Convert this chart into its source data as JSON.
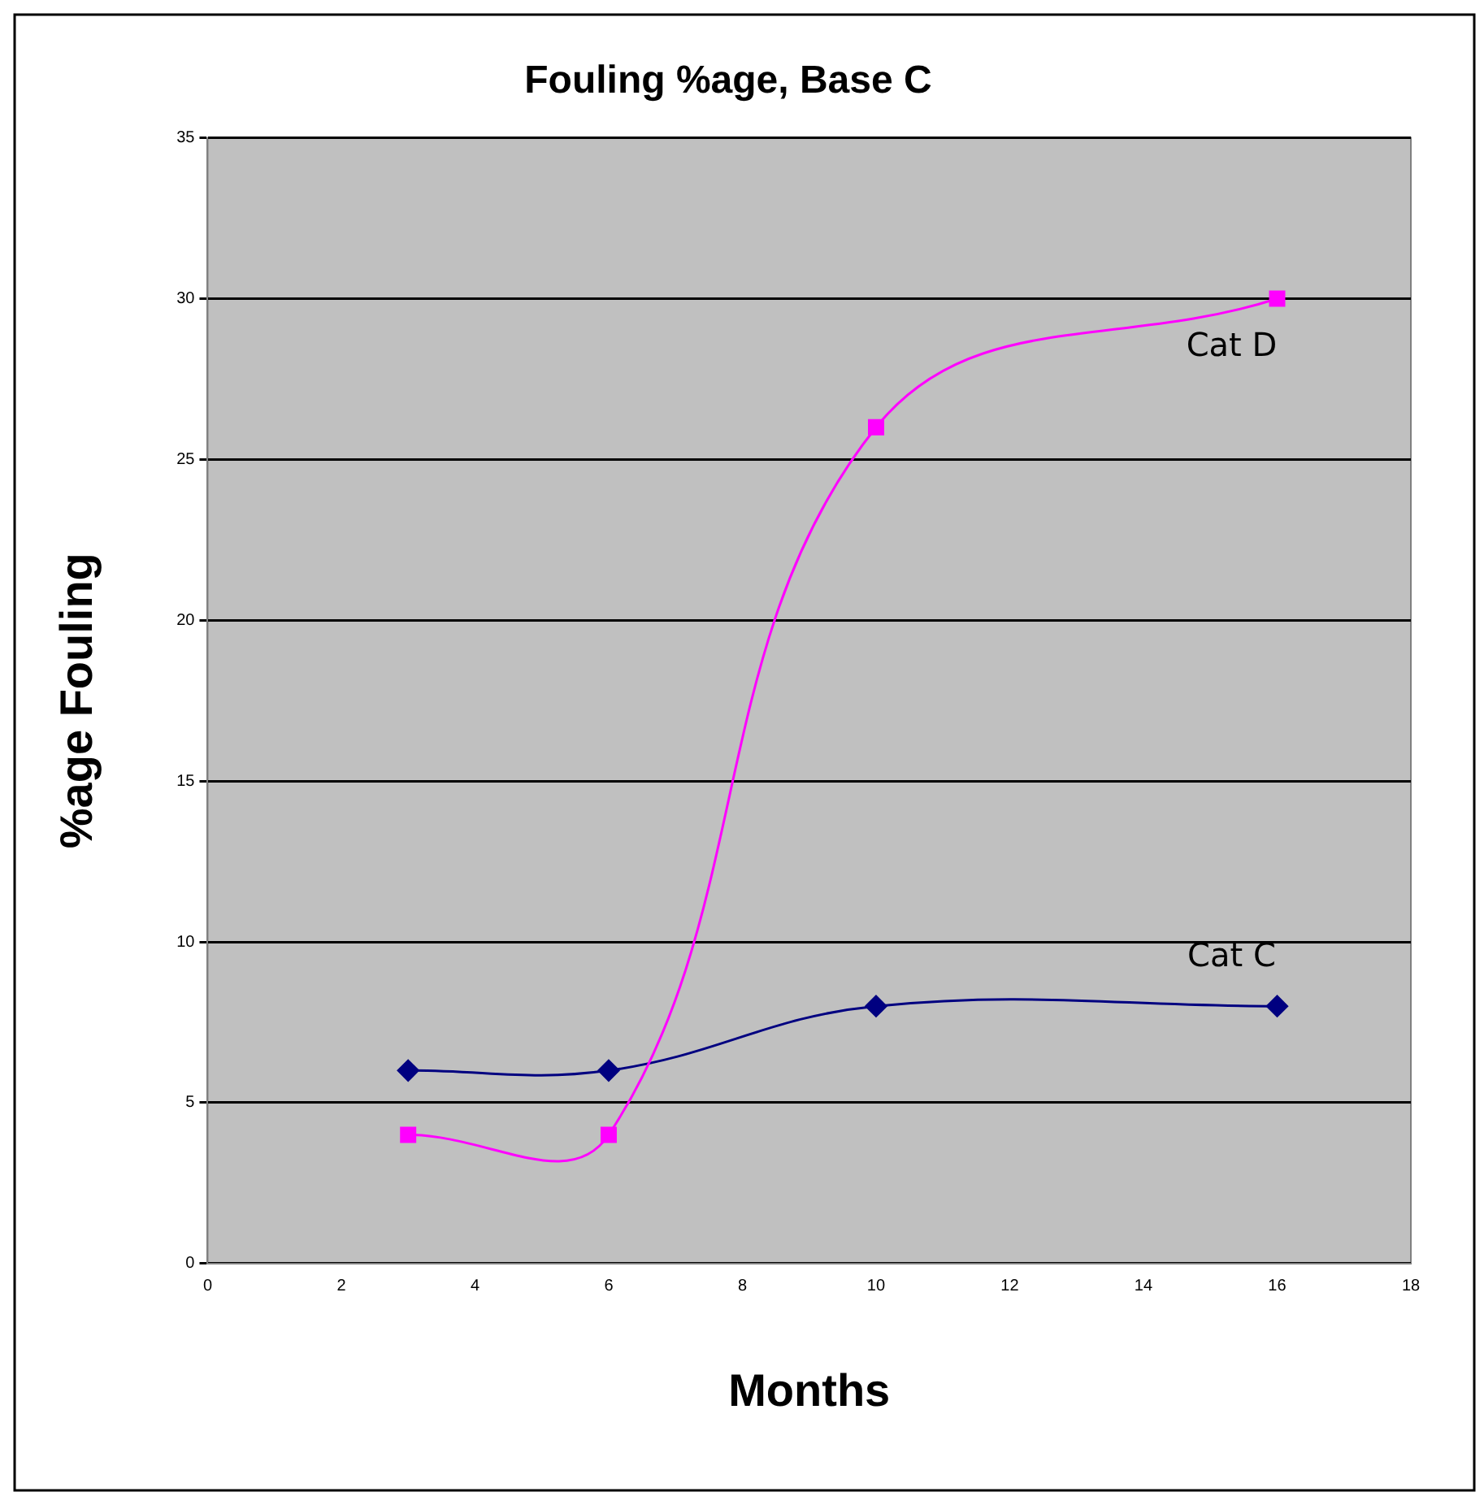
{
  "chart_data": {
    "type": "line",
    "title": "Fouling %age, Base C",
    "xlabel": "Months",
    "ylabel": "%age Fouling",
    "xlim": [
      0,
      18
    ],
    "xticks": [
      0,
      2,
      4,
      6,
      8,
      10,
      12,
      14,
      16,
      18
    ],
    "ylim": [
      0,
      35
    ],
    "yticks": [
      0,
      5,
      10,
      15,
      20,
      25,
      30,
      35
    ],
    "grid": "y",
    "series": [
      {
        "name": "Cat D",
        "color": "#ff00ff",
        "marker": "square",
        "x": [
          3,
          6,
          10,
          16
        ],
        "values": [
          4,
          4,
          26,
          30
        ]
      },
      {
        "name": "Cat C",
        "color": "#000080",
        "marker": "diamond",
        "x": [
          3,
          6,
          10,
          16
        ],
        "values": [
          6,
          6,
          8,
          8
        ]
      }
    ]
  }
}
